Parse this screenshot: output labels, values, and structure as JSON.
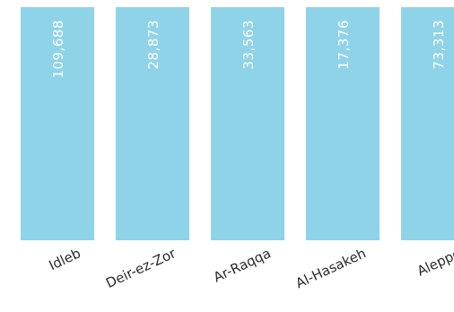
{
  "chart_data": {
    "type": "bar",
    "categories": [
      "Idleb",
      "Deir-ez-Zor",
      "Ar-Raqqa",
      "Al-Hasakeh",
      "Aleppo"
    ],
    "values": [
      109688,
      28873,
      33563,
      17376,
      73313
    ],
    "value_labels": [
      "109,688",
      "28,873",
      "33,563",
      "17,376",
      "73,313"
    ],
    "title": "",
    "xlabel": "",
    "ylabel": "",
    "bar_color": "#8fd3e8",
    "value_label_color": "#ffffff",
    "grid": false,
    "legend": "none"
  }
}
